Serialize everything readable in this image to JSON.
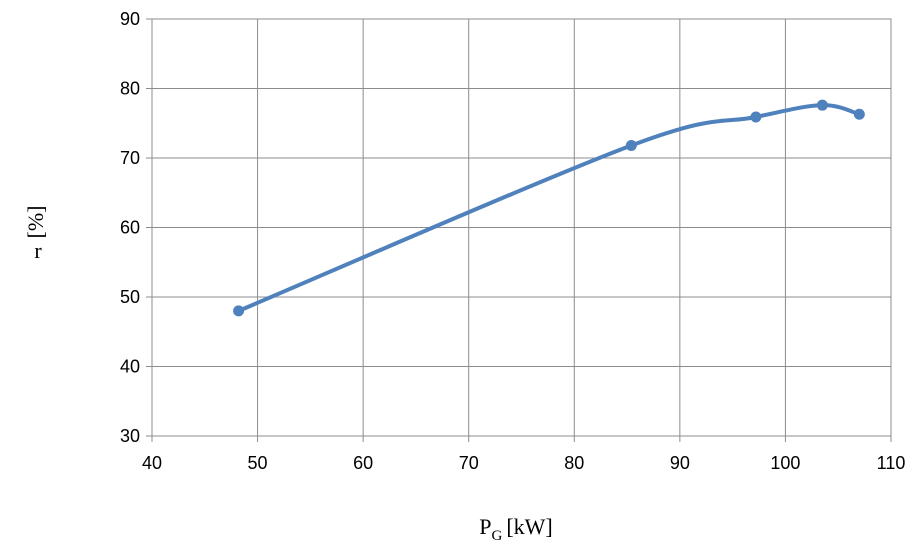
{
  "chart_data": {
    "type": "scatter",
    "title": "",
    "xlabel": {
      "main": "P",
      "subscript": "G",
      "unit": "[kW]"
    },
    "ylabel": {
      "unit": "[%]",
      "symbol": "r"
    },
    "xlim": [
      40,
      110
    ],
    "ylim": [
      30,
      90
    ],
    "x_ticks": [
      "40",
      "50",
      "60",
      "70",
      "80",
      "90",
      "100",
      "110"
    ],
    "y_ticks": [
      "30",
      "40",
      "50",
      "60",
      "70",
      "80",
      "90"
    ],
    "grid": true,
    "legend": "none",
    "smoothed_line": true,
    "series_color": "#4f81bd",
    "series": [
      {
        "x": [
          48.2,
          85.4,
          97.2,
          103.5,
          107
        ],
        "y": [
          48.0,
          71.8,
          75.9,
          77.6,
          76.3
        ]
      }
    ]
  }
}
